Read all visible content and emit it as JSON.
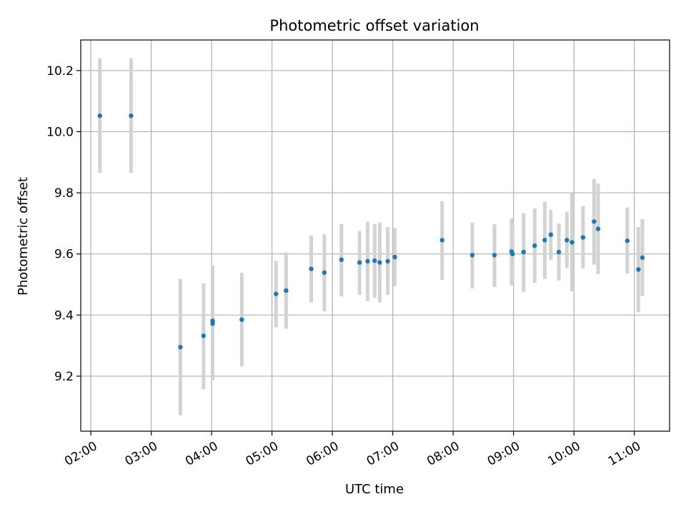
{
  "chart_data": {
    "type": "scatter",
    "title": "Photometric offset variation",
    "xlabel": "UTC time",
    "ylabel": "Photometric offset",
    "x_tick_labels": [
      "02:00",
      "03:00",
      "04:00",
      "05:00",
      "06:00",
      "07:00",
      "08:00",
      "09:00",
      "10:00",
      "11:00"
    ],
    "y_tick_labels": [
      "9.2",
      "9.4",
      "9.6",
      "9.8",
      "10.0",
      "10.2"
    ],
    "xlim": [
      "01:50",
      "11:35"
    ],
    "ylim": [
      9.02,
      10.3
    ],
    "grid": true,
    "colors": {
      "marker": "#1f77b4",
      "errorbar": "#d3d3d3",
      "grid": "#b0b0b0"
    },
    "points": [
      {
        "t": "02:09",
        "y": 10.052,
        "lo": 9.865,
        "hi": 10.24
      },
      {
        "t": "02:40",
        "y": 10.052,
        "lo": 9.865,
        "hi": 10.24
      },
      {
        "t": "03:29",
        "y": 9.295,
        "lo": 9.072,
        "hi": 9.518
      },
      {
        "t": "03:52",
        "y": 9.332,
        "lo": 9.157,
        "hi": 9.504
      },
      {
        "t": "04:01",
        "y": 9.381,
        "lo": 9.196,
        "hi": 9.562
      },
      {
        "t": "04:01",
        "y": 9.372,
        "lo": 9.186,
        "hi": 9.552
      },
      {
        "t": "04:30",
        "y": 9.385,
        "lo": 9.232,
        "hi": 9.538
      },
      {
        "t": "05:04",
        "y": 9.469,
        "lo": 9.36,
        "hi": 9.577
      },
      {
        "t": "05:14",
        "y": 9.48,
        "lo": 9.355,
        "hi": 9.605
      },
      {
        "t": "05:39",
        "y": 9.551,
        "lo": 9.441,
        "hi": 9.66
      },
      {
        "t": "05:52",
        "y": 9.539,
        "lo": 9.412,
        "hi": 9.664
      },
      {
        "t": "06:09",
        "y": 9.581,
        "lo": 9.461,
        "hi": 9.698
      },
      {
        "t": "06:27",
        "y": 9.572,
        "lo": 9.466,
        "hi": 9.675
      },
      {
        "t": "06:35",
        "y": 9.576,
        "lo": 9.446,
        "hi": 9.705
      },
      {
        "t": "06:42",
        "y": 9.578,
        "lo": 9.457,
        "hi": 9.697
      },
      {
        "t": "06:47",
        "y": 9.572,
        "lo": 9.441,
        "hi": 9.703
      },
      {
        "t": "06:55",
        "y": 9.576,
        "lo": 9.466,
        "hi": 9.688
      },
      {
        "t": "07:02",
        "y": 9.59,
        "lo": 9.494,
        "hi": 9.684
      },
      {
        "t": "07:49",
        "y": 9.645,
        "lo": 9.515,
        "hi": 9.772
      },
      {
        "t": "08:19",
        "y": 9.596,
        "lo": 9.487,
        "hi": 9.702
      },
      {
        "t": "08:41",
        "y": 9.596,
        "lo": 9.492,
        "hi": 9.697
      },
      {
        "t": "08:58",
        "y": 9.608,
        "lo": 9.497,
        "hi": 9.716
      },
      {
        "t": "08:59",
        "y": 9.6,
        "lo": 9.51,
        "hi": 9.696
      },
      {
        "t": "09:10",
        "y": 9.606,
        "lo": 9.476,
        "hi": 9.734
      },
      {
        "t": "09:21",
        "y": 9.627,
        "lo": 9.505,
        "hi": 9.749
      },
      {
        "t": "09:31",
        "y": 9.645,
        "lo": 9.518,
        "hi": 9.771
      },
      {
        "t": "09:37",
        "y": 9.663,
        "lo": 9.581,
        "hi": 9.745
      },
      {
        "t": "09:45",
        "y": 9.606,
        "lo": 9.513,
        "hi": 9.7
      },
      {
        "t": "09:53",
        "y": 9.645,
        "lo": 9.553,
        "hi": 9.738
      },
      {
        "t": "09:58",
        "y": 9.638,
        "lo": 9.477,
        "hi": 9.799
      },
      {
        "t": "10:09",
        "y": 9.654,
        "lo": 9.552,
        "hi": 9.757
      },
      {
        "t": "10:20",
        "y": 9.706,
        "lo": 9.565,
        "hi": 9.845
      },
      {
        "t": "10:24",
        "y": 9.682,
        "lo": 9.534,
        "hi": 9.83
      },
      {
        "t": "10:53",
        "y": 9.643,
        "lo": 9.536,
        "hi": 9.752
      },
      {
        "t": "11:04",
        "y": 9.549,
        "lo": 9.409,
        "hi": 9.688
      },
      {
        "t": "11:08",
        "y": 9.588,
        "lo": 9.462,
        "hi": 9.714
      }
    ]
  }
}
